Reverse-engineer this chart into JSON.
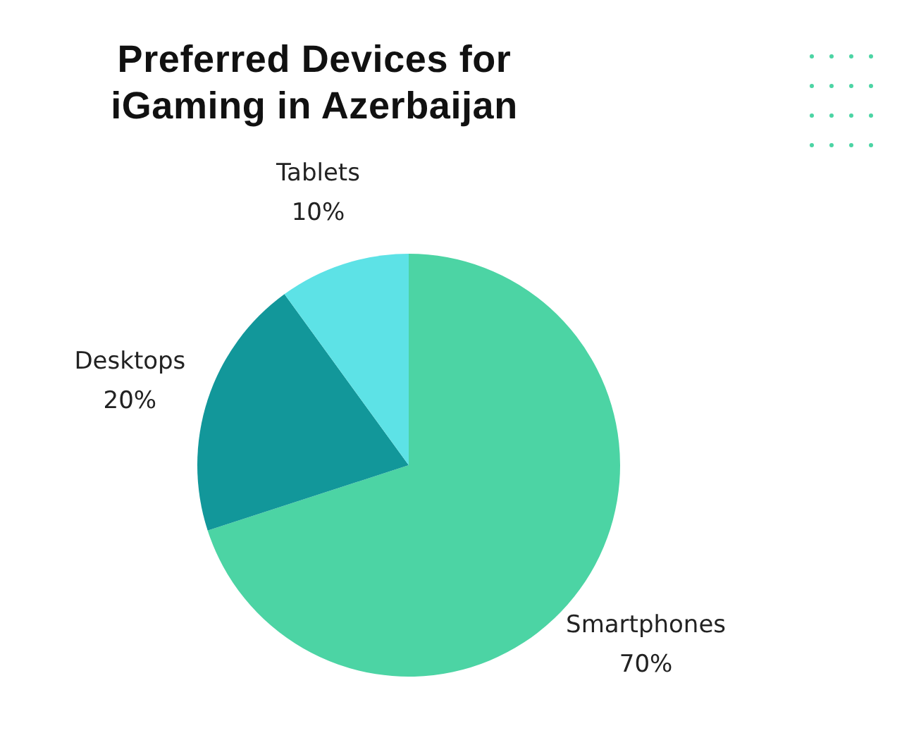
{
  "chart_data": {
    "type": "pie",
    "title": "Preferred Devices for iGaming in Azerbaijan",
    "categories": [
      "Smartphones",
      "Desktops",
      "Tablets"
    ],
    "values": [
      70,
      20,
      10
    ],
    "colors": [
      "#4cd4a4",
      "#12979a",
      "#5de2e6"
    ],
    "value_labels": [
      "70%",
      "20%",
      "10%"
    ],
    "legend": false
  }
}
